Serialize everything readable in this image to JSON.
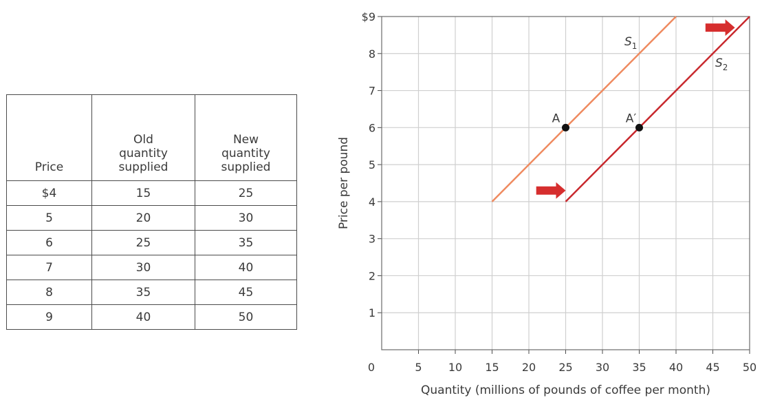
{
  "table": {
    "headers": [
      "Price",
      "Old quantity supplied",
      "New quantity supplied"
    ],
    "rows": [
      [
        "$4",
        "15",
        "25"
      ],
      [
        "5",
        "20",
        "30"
      ],
      [
        "6",
        "25",
        "35"
      ],
      [
        "7",
        "30",
        "40"
      ],
      [
        "8",
        "35",
        "45"
      ],
      [
        "9",
        "40",
        "50"
      ]
    ]
  },
  "chart_data": {
    "type": "line",
    "xlabel": "Quantity (millions of pounds of coffee per month)",
    "ylabel": "Price per pound",
    "xlim": [
      0,
      50
    ],
    "ylim": [
      0,
      9
    ],
    "x_ticks": [
      0,
      5,
      10,
      15,
      20,
      25,
      30,
      35,
      40,
      45,
      50
    ],
    "y_tick_labels": [
      "1",
      "2",
      "3",
      "4",
      "5",
      "6",
      "7",
      "8",
      "$9"
    ],
    "grid": true,
    "series": [
      {
        "name": "S1",
        "color": "#ef8a5f",
        "x": [
          15,
          40
        ],
        "y": [
          4,
          9
        ]
      },
      {
        "name": "S2",
        "color": "#c8282d",
        "x": [
          25,
          50
        ],
        "y": [
          4,
          9
        ]
      }
    ],
    "points": [
      {
        "label": "A",
        "x": 25,
        "y": 6
      },
      {
        "label": "A′",
        "x": 35,
        "y": 6
      }
    ],
    "arrows": [
      {
        "color": "#d62e2e",
        "from": [
          44,
          8.7
        ],
        "to": [
          48,
          8.7
        ]
      },
      {
        "color": "#d62e2e",
        "from": [
          21,
          4.3
        ],
        "to": [
          25,
          4.3
        ]
      }
    ]
  }
}
